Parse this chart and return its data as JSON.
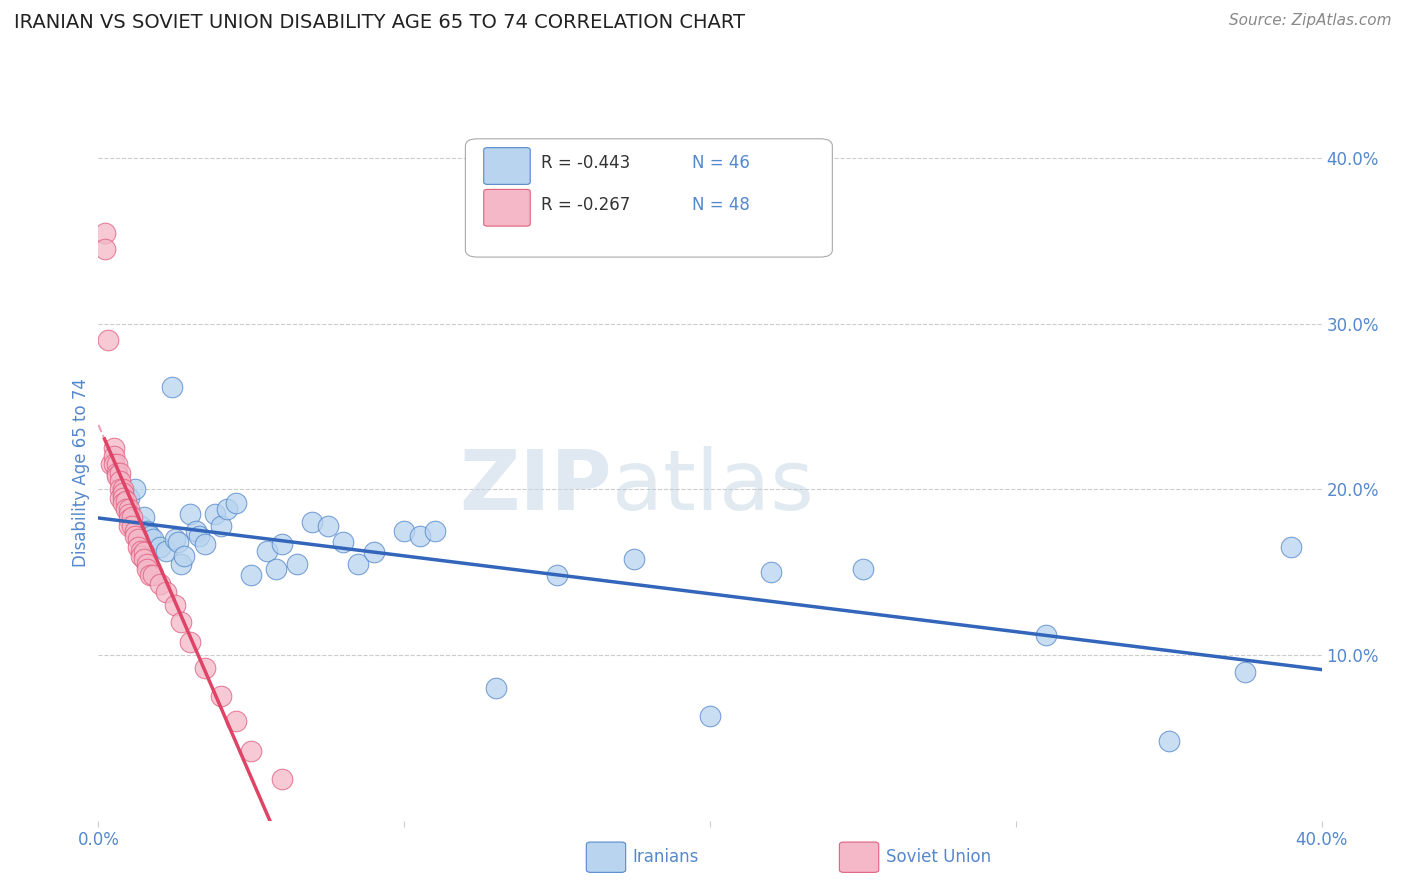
{
  "title": "IRANIAN VS SOVIET UNION DISABILITY AGE 65 TO 74 CORRELATION CHART",
  "source": "Source: ZipAtlas.com",
  "ylabel": "Disability Age 65 to 74",
  "xlim": [
    0.0,
    0.4
  ],
  "ylim": [
    0.0,
    0.42
  ],
  "legend_r_iranian": "R = -0.443",
  "legend_n_iranian": "N = 46",
  "legend_r_soviet": "R = -0.267",
  "legend_n_soviet": "N = 48",
  "iranian_color": "#b8d4ee",
  "soviet_color": "#f4b8c8",
  "iranian_edge_color": "#5588cc",
  "soviet_edge_color": "#e06080",
  "iranian_line_color": "#3366bb",
  "soviet_line_color": "#dd4466",
  "soviet_dash_color": "#f0a0b8",
  "background_color": "#ffffff",
  "grid_color": "#cccccc",
  "title_color": "#222222",
  "tick_color": "#5588cc",
  "watermark_color": "#ccd9ee",
  "iranians_x": [
    0.01,
    0.01,
    0.012,
    0.014,
    0.015,
    0.016,
    0.017,
    0.018,
    0.02,
    0.022,
    0.024,
    0.025,
    0.026,
    0.027,
    0.028,
    0.03,
    0.032,
    0.033,
    0.035,
    0.038,
    0.04,
    0.042,
    0.045,
    0.05,
    0.055,
    0.058,
    0.06,
    0.065,
    0.07,
    0.075,
    0.08,
    0.085,
    0.09,
    0.1,
    0.105,
    0.11,
    0.13,
    0.15,
    0.175,
    0.2,
    0.22,
    0.25,
    0.31,
    0.35,
    0.375,
    0.39
  ],
  "iranians_y": [
    0.195,
    0.185,
    0.2,
    0.178,
    0.183,
    0.175,
    0.172,
    0.17,
    0.165,
    0.163,
    0.262,
    0.17,
    0.168,
    0.155,
    0.16,
    0.185,
    0.175,
    0.172,
    0.167,
    0.185,
    0.178,
    0.188,
    0.192,
    0.148,
    0.163,
    0.152,
    0.167,
    0.155,
    0.18,
    0.178,
    0.168,
    0.155,
    0.162,
    0.175,
    0.172,
    0.175,
    0.08,
    0.148,
    0.158,
    0.063,
    0.15,
    0.152,
    0.112,
    0.048,
    0.09,
    0.165
  ],
  "soviet_x": [
    0.002,
    0.002,
    0.003,
    0.004,
    0.005,
    0.005,
    0.005,
    0.006,
    0.006,
    0.006,
    0.007,
    0.007,
    0.007,
    0.007,
    0.008,
    0.008,
    0.008,
    0.008,
    0.009,
    0.009,
    0.01,
    0.01,
    0.01,
    0.01,
    0.011,
    0.011,
    0.012,
    0.012,
    0.013,
    0.013,
    0.014,
    0.014,
    0.015,
    0.015,
    0.016,
    0.016,
    0.017,
    0.018,
    0.02,
    0.022,
    0.025,
    0.027,
    0.03,
    0.035,
    0.04,
    0.045,
    0.05,
    0.06
  ],
  "soviet_y": [
    0.355,
    0.345,
    0.29,
    0.215,
    0.225,
    0.22,
    0.215,
    0.215,
    0.21,
    0.208,
    0.21,
    0.205,
    0.2,
    0.195,
    0.2,
    0.198,
    0.195,
    0.192,
    0.193,
    0.188,
    0.188,
    0.185,
    0.182,
    0.178,
    0.183,
    0.178,
    0.175,
    0.172,
    0.17,
    0.165,
    0.163,
    0.16,
    0.162,
    0.158,
    0.155,
    0.152,
    0.148,
    0.148,
    0.143,
    0.138,
    0.13,
    0.12,
    0.108,
    0.092,
    0.075,
    0.06,
    0.042,
    0.025
  ]
}
